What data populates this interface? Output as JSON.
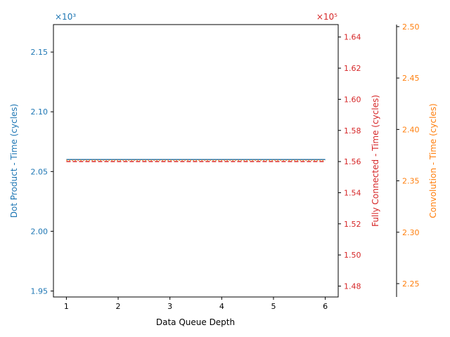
{
  "chart_data": {
    "type": "line",
    "x": [
      1,
      2,
      3,
      4,
      5,
      6
    ],
    "xlabel": "Data Queue Depth",
    "xlim": [
      0.75,
      6.25
    ],
    "xticks": [
      "1",
      "2",
      "3",
      "4",
      "5",
      "6"
    ],
    "grid": false,
    "legend": "none",
    "axes": [
      {
        "key": "dot",
        "label": "Dot Product - Time (cycles)",
        "multiplier": "×10³",
        "color": "#1f77b4",
        "ylim": [
          1.945,
          2.173
        ],
        "ticks": [
          1.95,
          2.0,
          2.05,
          2.1,
          2.15
        ],
        "tick_labels": [
          "1.95",
          "2.00",
          "2.05",
          "2.10",
          "2.15"
        ]
      },
      {
        "key": "fc",
        "label": "Fully Connected - Time (cycles)",
        "multiplier": "×10⁵",
        "color": "#d62728",
        "ylim": [
          1.473,
          1.648
        ],
        "ticks": [
          1.48,
          1.5,
          1.52,
          1.54,
          1.56,
          1.58,
          1.6,
          1.62,
          1.64
        ],
        "tick_labels": [
          "1.48",
          "1.50",
          "1.52",
          "1.54",
          "1.56",
          "1.58",
          "1.60",
          "1.62",
          "1.64"
        ]
      },
      {
        "key": "conv",
        "label": "Convolution - Time (cycles)",
        "multiplier": "",
        "color": "#ff7f0e",
        "ylim": [
          2.237,
          2.502
        ],
        "ticks": [
          2.25,
          2.3,
          2.35,
          2.4,
          2.45,
          2.5
        ],
        "tick_labels": [
          "2.25",
          "2.30",
          "2.35",
          "2.40",
          "2.45",
          "2.50"
        ]
      }
    ],
    "series": [
      {
        "axis": "dot",
        "values": [
          2.06,
          2.06,
          2.06,
          2.06,
          2.06,
          2.06
        ],
        "style": "solid"
      },
      {
        "axis": "fc",
        "values": [
          1.56,
          1.56,
          1.56,
          1.56,
          1.56,
          1.56
        ],
        "style": "dashed"
      },
      {
        "axis": "conv",
        "values": [
          2.37,
          2.37,
          2.37,
          2.37,
          2.37,
          2.37
        ],
        "style": "dotted"
      }
    ]
  }
}
